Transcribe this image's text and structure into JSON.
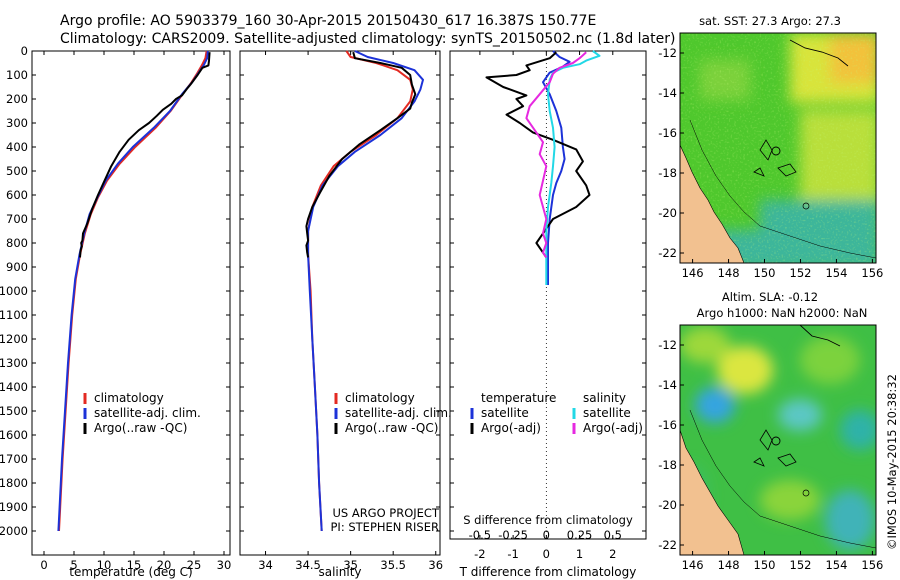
{
  "header": {
    "line1": "Argo profile: AO 5903379_160 30-Apr-2015 20150430_617 16.387S 150.77E",
    "line2": "Climatology: CARS2009. Satellite-adjusted climatology: synTS_20150502.nc (1.8d later)"
  },
  "side_stamp": "©IMOS 10-May-2015 20:38:32",
  "colors": {
    "climatology": "#e32a22",
    "satellite": "#1c32d8",
    "argo": "#000000",
    "sat_sal": "#22d8e6",
    "argo_sal": "#e629e0"
  },
  "chart_data": [
    {
      "type": "line",
      "id": "temperature",
      "xlabel": "temperature (deg C)",
      "ylabel": "",
      "xlim": [
        -2,
        31
      ],
      "ylim": [
        2100,
        0
      ],
      "xticks": [
        0,
        5,
        10,
        15,
        20,
        25,
        30
      ],
      "yticks": [
        0,
        100,
        200,
        300,
        400,
        500,
        600,
        700,
        800,
        900,
        1000,
        1100,
        1200,
        1300,
        1400,
        1500,
        1600,
        1700,
        1800,
        1900,
        2000
      ],
      "legend": [
        "climatology",
        "satellite-adj. clim.",
        "Argo(..raw -QC)"
      ],
      "series": [
        {
          "name": "climatology",
          "color": "#e32a22",
          "points": [
            [
              27.1,
              0
            ],
            [
              26.9,
              30
            ],
            [
              26.3,
              60
            ],
            [
              25.6,
              90
            ],
            [
              24.6,
              130
            ],
            [
              23.1,
              180
            ],
            [
              21.1,
              250
            ],
            [
              18.6,
              320
            ],
            [
              15.2,
              400
            ],
            [
              12.6,
              470
            ],
            [
              10.5,
              540
            ],
            [
              9.0,
              610
            ],
            [
              7.8,
              680
            ],
            [
              6.8,
              760
            ],
            [
              6.0,
              850
            ],
            [
              5.3,
              950
            ],
            [
              4.7,
              1100
            ],
            [
              4.1,
              1300
            ],
            [
              3.6,
              1500
            ],
            [
              3.1,
              1700
            ],
            [
              2.7,
              1900
            ],
            [
              2.5,
              2000
            ]
          ]
        },
        {
          "name": "satellite-adj. clim.",
          "color": "#1c32d8",
          "points": [
            [
              27.3,
              0
            ],
            [
              27.2,
              30
            ],
            [
              26.6,
              60
            ],
            [
              25.8,
              90
            ],
            [
              24.7,
              130
            ],
            [
              23.0,
              180
            ],
            [
              21.0,
              250
            ],
            [
              18.3,
              320
            ],
            [
              14.8,
              400
            ],
            [
              12.3,
              470
            ],
            [
              10.3,
              540
            ],
            [
              8.9,
              610
            ],
            [
              7.6,
              680
            ],
            [
              6.7,
              760
            ],
            [
              5.9,
              850
            ],
            [
              5.2,
              950
            ],
            [
              4.6,
              1100
            ],
            [
              4.0,
              1300
            ],
            [
              3.5,
              1500
            ],
            [
              3.0,
              1700
            ],
            [
              2.6,
              1900
            ],
            [
              2.4,
              2000
            ]
          ]
        },
        {
          "name": "Argo(..raw -QC)",
          "color": "#000000",
          "points": [
            [
              27.6,
              5
            ],
            [
              27.5,
              40
            ],
            [
              27.4,
              60
            ],
            [
              26.4,
              70
            ],
            [
              25.6,
              100
            ],
            [
              24.4,
              140
            ],
            [
              23.9,
              155
            ],
            [
              23.0,
              185
            ],
            [
              22.0,
              200
            ],
            [
              21.2,
              220
            ],
            [
              19.8,
              245
            ],
            [
              18.8,
              270
            ],
            [
              17.5,
              300
            ],
            [
              15.8,
              330
            ],
            [
              14.1,
              370
            ],
            [
              12.6,
              420
            ],
            [
              11.2,
              480
            ],
            [
              10.1,
              540
            ],
            [
              9.0,
              600
            ],
            [
              8.0,
              660
            ],
            [
              7.2,
              720
            ],
            [
              6.5,
              760
            ],
            [
              6.4,
              790
            ],
            [
              6.2,
              800
            ],
            [
              6.3,
              815
            ],
            [
              6.1,
              830
            ],
            [
              6.0,
              860
            ]
          ]
        }
      ]
    },
    {
      "type": "line",
      "id": "salinity",
      "xlabel": "salinity",
      "xlim": [
        33.7,
        36.05
      ],
      "ylim": [
        2100,
        0
      ],
      "xticks": [
        34,
        34.5,
        35,
        35.5,
        36
      ],
      "legend": [
        "climatology",
        "satellite-adj. clim.",
        "Argo(..raw -QC)"
      ],
      "credit": [
        "US ARGO PROJECT",
        "PI: STEPHEN RISER"
      ],
      "series": [
        {
          "name": "climatology",
          "color": "#e32a22",
          "points": [
            [
              34.95,
              0
            ],
            [
              35.0,
              25
            ],
            [
              35.3,
              50
            ],
            [
              35.55,
              80
            ],
            [
              35.7,
              120
            ],
            [
              35.73,
              160
            ],
            [
              35.7,
              210
            ],
            [
              35.55,
              280
            ],
            [
              35.3,
              350
            ],
            [
              35.0,
              420
            ],
            [
              34.8,
              480
            ],
            [
              34.65,
              560
            ],
            [
              34.55,
              650
            ],
            [
              34.5,
              750
            ],
            [
              34.5,
              850
            ],
            [
              34.53,
              1000
            ],
            [
              34.55,
              1200
            ],
            [
              34.58,
              1400
            ],
            [
              34.61,
              1600
            ],
            [
              34.63,
              1800
            ],
            [
              34.66,
              2000
            ]
          ]
        },
        {
          "name": "satellite-adj. clim.",
          "color": "#1c32d8",
          "points": [
            [
              35.05,
              0
            ],
            [
              35.2,
              25
            ],
            [
              35.5,
              50
            ],
            [
              35.75,
              80
            ],
            [
              35.85,
              120
            ],
            [
              35.82,
              160
            ],
            [
              35.75,
              210
            ],
            [
              35.6,
              280
            ],
            [
              35.35,
              350
            ],
            [
              35.05,
              420
            ],
            [
              34.85,
              480
            ],
            [
              34.67,
              560
            ],
            [
              34.56,
              650
            ],
            [
              34.5,
              750
            ],
            [
              34.5,
              850
            ],
            [
              34.52,
              1000
            ],
            [
              34.55,
              1200
            ],
            [
              34.58,
              1400
            ],
            [
              34.61,
              1600
            ],
            [
              34.63,
              1800
            ],
            [
              34.66,
              2000
            ]
          ]
        },
        {
          "name": "Argo(..raw -QC)",
          "color": "#000000",
          "points": [
            [
              35.03,
              5
            ],
            [
              35.05,
              30
            ],
            [
              35.35,
              50
            ],
            [
              35.6,
              70
            ],
            [
              35.7,
              100
            ],
            [
              35.72,
              140
            ],
            [
              35.76,
              180
            ],
            [
              35.72,
              215
            ],
            [
              35.7,
              240
            ],
            [
              35.55,
              280
            ],
            [
              35.35,
              330
            ],
            [
              35.1,
              390
            ],
            [
              34.9,
              450
            ],
            [
              34.75,
              520
            ],
            [
              34.64,
              590
            ],
            [
              34.55,
              650
            ],
            [
              34.5,
              700
            ],
            [
              34.48,
              730
            ],
            [
              34.49,
              760
            ],
            [
              34.5,
              790
            ],
            [
              34.48,
              810
            ],
            [
              34.49,
              840
            ],
            [
              34.5,
              860
            ]
          ]
        }
      ]
    },
    {
      "type": "line",
      "id": "difference",
      "xlabel": "T difference from climatology",
      "xlabel_top": "S difference from climatology",
      "xlim": [
        -2.9,
        3.0
      ],
      "ylim": [
        2100,
        0
      ],
      "xticks": [
        -2,
        -1,
        0,
        1,
        2
      ],
      "xticks_top": [
        -0.5,
        -0.25,
        0,
        0.25,
        0.5
      ],
      "xticks_top_labels": [
        "-0.5",
        "-0.25",
        "0",
        "0.25",
        "0.5"
      ],
      "legend_temperature": {
        "title": "temperature",
        "items": [
          "satellite",
          "Argo(-adj)"
        ]
      },
      "legend_salinity": {
        "title": "salinity",
        "items": [
          "satellite",
          "Argo(-adj)"
        ]
      },
      "series": [
        {
          "name": "T satellite",
          "color": "#1c32d8",
          "points": [
            [
              0.2,
              0
            ],
            [
              0.4,
              25
            ],
            [
              0.7,
              45
            ],
            [
              0.5,
              65
            ],
            [
              0.1,
              90
            ],
            [
              -0.1,
              130
            ],
            [
              0.1,
              180
            ],
            [
              0.3,
              250
            ],
            [
              0.45,
              320
            ],
            [
              0.5,
              400
            ],
            [
              0.55,
              450
            ],
            [
              0.45,
              500
            ],
            [
              0.3,
              550
            ],
            [
              0.2,
              600
            ],
            [
              0.1,
              700
            ],
            [
              0.05,
              800
            ],
            [
              0.05,
              900
            ],
            [
              0.05,
              975
            ]
          ]
        },
        {
          "name": "T Argo(-adj)",
          "color": "#000000",
          "points": [
            [
              0.3,
              5
            ],
            [
              0.1,
              30
            ],
            [
              -0.6,
              60
            ],
            [
              -0.5,
              80
            ],
            [
              -0.9,
              100
            ],
            [
              -1.8,
              110
            ],
            [
              -1.3,
              150
            ],
            [
              -0.6,
              185
            ],
            [
              -0.9,
              200
            ],
            [
              -0.7,
              230
            ],
            [
              -1.2,
              265
            ],
            [
              -0.8,
              300
            ],
            [
              -0.4,
              340
            ],
            [
              0.2,
              370
            ],
            [
              0.9,
              410
            ],
            [
              1.1,
              460
            ],
            [
              0.9,
              500
            ],
            [
              1.2,
              560
            ],
            [
              1.3,
              600
            ],
            [
              0.9,
              650
            ],
            [
              0.2,
              700
            ],
            [
              -0.1,
              760
            ],
            [
              -0.3,
              800
            ],
            [
              -0.1,
              840
            ],
            [
              0.0,
              860
            ]
          ]
        },
        {
          "name": "S satellite",
          "color": "#22d8e6",
          "points": [
            [
              1.4,
              0
            ],
            [
              1.6,
              20
            ],
            [
              1.2,
              40
            ],
            [
              1.0,
              55
            ],
            [
              0.5,
              70
            ],
            [
              0.2,
              90
            ],
            [
              0.1,
              120
            ],
            [
              0.05,
              180
            ],
            [
              0.1,
              250
            ],
            [
              0.2,
              320
            ],
            [
              0.25,
              400
            ],
            [
              0.2,
              480
            ],
            [
              0.15,
              550
            ],
            [
              0.05,
              650
            ],
            [
              0.0,
              750
            ],
            [
              0.0,
              850
            ],
            [
              0.0,
              975
            ]
          ]
        },
        {
          "name": "S Argo(-adj)",
          "color": "#e629e0",
          "points": [
            [
              1.2,
              5
            ],
            [
              1.0,
              30
            ],
            [
              0.8,
              50
            ],
            [
              0.4,
              70
            ],
            [
              0.2,
              95
            ],
            [
              0.1,
              130
            ],
            [
              -0.2,
              180
            ],
            [
              -0.5,
              230
            ],
            [
              -0.6,
              280
            ],
            [
              -0.4,
              320
            ],
            [
              -0.1,
              380
            ],
            [
              -0.2,
              430
            ],
            [
              0.0,
              480
            ],
            [
              -0.1,
              540
            ],
            [
              -0.2,
              600
            ],
            [
              -0.1,
              650
            ],
            [
              0.0,
              700
            ],
            [
              -0.1,
              760
            ],
            [
              0.0,
              800
            ],
            [
              -0.1,
              840
            ],
            [
              0.0,
              860
            ]
          ]
        }
      ]
    }
  ],
  "maps": [
    {
      "id": "sst",
      "title": "sat. SST: 27.3 Argo: 27.3",
      "xticks": [
        146,
        148,
        150,
        152,
        154,
        156
      ],
      "yticks": [
        -12,
        -14,
        -16,
        -18,
        -20,
        -22
      ]
    },
    {
      "id": "sla",
      "title1": "Altim. SLA: -0.12",
      "title2": "Argo h1000: NaN h2000: NaN",
      "xticks": [
        146,
        148,
        150,
        152,
        154,
        156
      ],
      "yticks": [
        -12,
        -14,
        -16,
        -18,
        -20,
        -22
      ]
    }
  ]
}
